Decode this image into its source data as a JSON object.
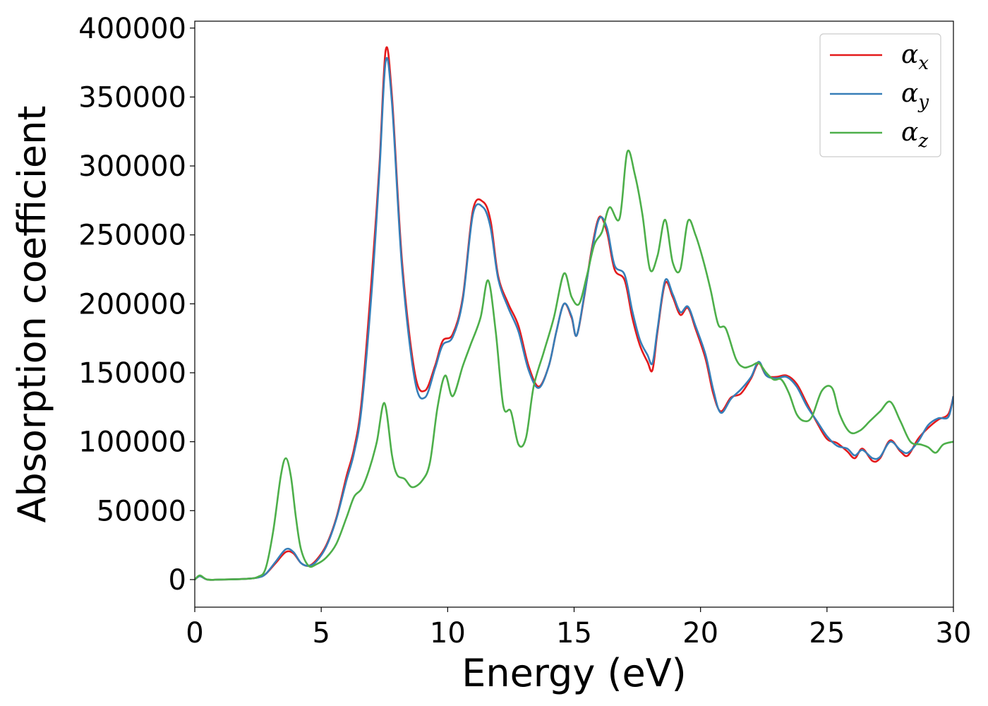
{
  "chart_data": {
    "type": "line",
    "title": "",
    "xlabel": "Energy (eV)",
    "ylabel": "Absorption coefficient",
    "xlim": [
      0,
      30
    ],
    "ylim": [
      -20000,
      405000
    ],
    "xticks": [
      0,
      5,
      10,
      15,
      20,
      25,
      30
    ],
    "xtick_labels": [
      "0",
      "5",
      "10",
      "15",
      "20",
      "25",
      "30"
    ],
    "yticks": [
      0,
      50000,
      100000,
      150000,
      200000,
      250000,
      300000,
      350000,
      400000
    ],
    "ytick_labels": [
      "0",
      "50000",
      "100000",
      "150000",
      "200000",
      "250000",
      "300000",
      "350000",
      "400000"
    ],
    "grid": false,
    "legend_position": "top-right",
    "series": [
      {
        "name": "αx",
        "symbol": "α",
        "subscript": "x",
        "color": "#e41a1c",
        "points": [
          [
            0,
            0
          ],
          [
            0.2,
            2500
          ],
          [
            0.5,
            0
          ],
          [
            1,
            0
          ],
          [
            2,
            500
          ],
          [
            2.5,
            1500
          ],
          [
            2.8,
            4000
          ],
          [
            3.2,
            12000
          ],
          [
            3.6,
            20000
          ],
          [
            3.9,
            19000
          ],
          [
            4.2,
            12000
          ],
          [
            4.5,
            10000
          ],
          [
            4.8,
            14000
          ],
          [
            5.2,
            25000
          ],
          [
            5.6,
            45000
          ],
          [
            6.0,
            75000
          ],
          [
            6.3,
            95000
          ],
          [
            6.6,
            130000
          ],
          [
            7.0,
            220000
          ],
          [
            7.3,
            300000
          ],
          [
            7.55,
            384000
          ],
          [
            7.8,
            350000
          ],
          [
            8.2,
            230000
          ],
          [
            8.7,
            150000
          ],
          [
            9.1,
            137000
          ],
          [
            9.5,
            155000
          ],
          [
            9.8,
            173000
          ],
          [
            10.2,
            178000
          ],
          [
            10.6,
            205000
          ],
          [
            11.0,
            268000
          ],
          [
            11.4,
            274000
          ],
          [
            11.7,
            260000
          ],
          [
            12.0,
            220000
          ],
          [
            12.4,
            200000
          ],
          [
            12.8,
            184000
          ],
          [
            13.2,
            155000
          ],
          [
            13.6,
            140000
          ],
          [
            14.0,
            155000
          ],
          [
            14.3,
            180000
          ],
          [
            14.6,
            200000
          ],
          [
            14.9,
            190000
          ],
          [
            15.1,
            177000
          ],
          [
            15.4,
            205000
          ],
          [
            15.7,
            240000
          ],
          [
            16.0,
            263000
          ],
          [
            16.3,
            252000
          ],
          [
            16.6,
            225000
          ],
          [
            17.0,
            217000
          ],
          [
            17.3,
            190000
          ],
          [
            17.6,
            170000
          ],
          [
            17.9,
            158000
          ],
          [
            18.1,
            152000
          ],
          [
            18.3,
            180000
          ],
          [
            18.6,
            215000
          ],
          [
            18.9,
            205000
          ],
          [
            19.2,
            192000
          ],
          [
            19.5,
            197000
          ],
          [
            19.8,
            182000
          ],
          [
            20.2,
            160000
          ],
          [
            20.5,
            135000
          ],
          [
            20.8,
            122000
          ],
          [
            21.2,
            132000
          ],
          [
            21.6,
            135000
          ],
          [
            22.0,
            146000
          ],
          [
            22.3,
            157000
          ],
          [
            22.6,
            148000
          ],
          [
            23.0,
            147000
          ],
          [
            23.4,
            148000
          ],
          [
            23.8,
            142000
          ],
          [
            24.2,
            128000
          ],
          [
            24.6,
            114000
          ],
          [
            25.0,
            102000
          ],
          [
            25.4,
            99000
          ],
          [
            25.8,
            93000
          ],
          [
            26.1,
            88000
          ],
          [
            26.4,
            95000
          ],
          [
            26.8,
            86000
          ],
          [
            27.1,
            88000
          ],
          [
            27.5,
            101000
          ],
          [
            27.9,
            93000
          ],
          [
            28.2,
            90000
          ],
          [
            28.6,
            102000
          ],
          [
            29.0,
            110000
          ],
          [
            29.4,
            116000
          ],
          [
            29.8,
            120000
          ],
          [
            30,
            133000
          ]
        ]
      },
      {
        "name": "αy",
        "symbol": "α",
        "subscript": "y",
        "color": "#377eb8",
        "points": [
          [
            0,
            0
          ],
          [
            0.2,
            2500
          ],
          [
            0.5,
            0
          ],
          [
            1,
            0
          ],
          [
            2,
            500
          ],
          [
            2.5,
            1500
          ],
          [
            2.8,
            4000
          ],
          [
            3.2,
            13000
          ],
          [
            3.6,
            22000
          ],
          [
            3.9,
            20000
          ],
          [
            4.2,
            12000
          ],
          [
            4.5,
            10000
          ],
          [
            4.8,
            13000
          ],
          [
            5.2,
            24000
          ],
          [
            5.6,
            44000
          ],
          [
            6.0,
            72000
          ],
          [
            6.3,
            92000
          ],
          [
            6.6,
            125000
          ],
          [
            7.0,
            210000
          ],
          [
            7.3,
            295000
          ],
          [
            7.55,
            376000
          ],
          [
            7.8,
            345000
          ],
          [
            8.2,
            225000
          ],
          [
            8.7,
            145000
          ],
          [
            9.1,
            132000
          ],
          [
            9.5,
            153000
          ],
          [
            9.8,
            170000
          ],
          [
            10.2,
            176000
          ],
          [
            10.6,
            203000
          ],
          [
            11.0,
            265000
          ],
          [
            11.4,
            270000
          ],
          [
            11.7,
            255000
          ],
          [
            12.0,
            218000
          ],
          [
            12.4,
            197000
          ],
          [
            12.8,
            180000
          ],
          [
            13.2,
            152000
          ],
          [
            13.6,
            139000
          ],
          [
            14.0,
            155000
          ],
          [
            14.3,
            180000
          ],
          [
            14.6,
            200000
          ],
          [
            14.9,
            191000
          ],
          [
            15.1,
            177000
          ],
          [
            15.4,
            206000
          ],
          [
            15.7,
            238000
          ],
          [
            16.0,
            262000
          ],
          [
            16.3,
            255000
          ],
          [
            16.6,
            228000
          ],
          [
            17.0,
            221000
          ],
          [
            17.3,
            195000
          ],
          [
            17.6,
            174000
          ],
          [
            17.9,
            163000
          ],
          [
            18.1,
            157000
          ],
          [
            18.3,
            182000
          ],
          [
            18.6,
            217000
          ],
          [
            18.9,
            207000
          ],
          [
            19.2,
            194000
          ],
          [
            19.5,
            198000
          ],
          [
            19.8,
            184000
          ],
          [
            20.2,
            163000
          ],
          [
            20.5,
            138000
          ],
          [
            20.8,
            121000
          ],
          [
            21.2,
            131000
          ],
          [
            21.6,
            138000
          ],
          [
            22.0,
            147000
          ],
          [
            22.3,
            158000
          ],
          [
            22.6,
            148000
          ],
          [
            23.0,
            146000
          ],
          [
            23.4,
            147000
          ],
          [
            23.8,
            140000
          ],
          [
            24.2,
            126000
          ],
          [
            24.6,
            115000
          ],
          [
            25.0,
            104000
          ],
          [
            25.4,
            97000
          ],
          [
            25.8,
            95000
          ],
          [
            26.1,
            90000
          ],
          [
            26.4,
            94000
          ],
          [
            26.8,
            88000
          ],
          [
            27.1,
            89000
          ],
          [
            27.5,
            100000
          ],
          [
            27.9,
            94000
          ],
          [
            28.2,
            92000
          ],
          [
            28.6,
            100000
          ],
          [
            29.0,
            112000
          ],
          [
            29.4,
            117000
          ],
          [
            29.8,
            118000
          ],
          [
            30,
            133000
          ]
        ]
      },
      {
        "name": "αz",
        "symbol": "α",
        "subscript": "z",
        "color": "#4daf4a",
        "points": [
          [
            0,
            0
          ],
          [
            0.2,
            3000
          ],
          [
            0.5,
            0
          ],
          [
            1,
            0
          ],
          [
            2,
            500
          ],
          [
            2.5,
            2000
          ],
          [
            2.8,
            8000
          ],
          [
            3.1,
            35000
          ],
          [
            3.4,
            75000
          ],
          [
            3.6,
            88000
          ],
          [
            3.8,
            75000
          ],
          [
            4.0,
            45000
          ],
          [
            4.2,
            22000
          ],
          [
            4.5,
            10000
          ],
          [
            4.8,
            11000
          ],
          [
            5.2,
            16000
          ],
          [
            5.6,
            26000
          ],
          [
            6.0,
            45000
          ],
          [
            6.3,
            60000
          ],
          [
            6.6,
            66000
          ],
          [
            6.9,
            80000
          ],
          [
            7.2,
            100000
          ],
          [
            7.5,
            128000
          ],
          [
            7.8,
            90000
          ],
          [
            8.0,
            76000
          ],
          [
            8.3,
            73000
          ],
          [
            8.6,
            67000
          ],
          [
            9.0,
            72000
          ],
          [
            9.3,
            85000
          ],
          [
            9.6,
            125000
          ],
          [
            9.9,
            148000
          ],
          [
            10.2,
            133000
          ],
          [
            10.6,
            155000
          ],
          [
            10.9,
            170000
          ],
          [
            11.3,
            190000
          ],
          [
            11.6,
            217000
          ],
          [
            11.9,
            180000
          ],
          [
            12.2,
            126000
          ],
          [
            12.5,
            122000
          ],
          [
            12.8,
            98000
          ],
          [
            13.1,
            103000
          ],
          [
            13.4,
            140000
          ],
          [
            13.8,
            165000
          ],
          [
            14.2,
            190000
          ],
          [
            14.6,
            222000
          ],
          [
            14.9,
            205000
          ],
          [
            15.2,
            200000
          ],
          [
            15.5,
            220000
          ],
          [
            15.8,
            243000
          ],
          [
            16.1,
            252000
          ],
          [
            16.4,
            270000
          ],
          [
            16.8,
            262000
          ],
          [
            17.1,
            310000
          ],
          [
            17.4,
            294000
          ],
          [
            17.7,
            265000
          ],
          [
            18.0,
            225000
          ],
          [
            18.3,
            235000
          ],
          [
            18.6,
            261000
          ],
          [
            18.9,
            230000
          ],
          [
            19.2,
            225000
          ],
          [
            19.5,
            260000
          ],
          [
            19.8,
            250000
          ],
          [
            20.1,
            232000
          ],
          [
            20.4,
            210000
          ],
          [
            20.7,
            185000
          ],
          [
            21.0,
            182000
          ],
          [
            21.4,
            160000
          ],
          [
            21.7,
            154000
          ],
          [
            22.0,
            155000
          ],
          [
            22.3,
            157000
          ],
          [
            22.6,
            150000
          ],
          [
            22.9,
            145000
          ],
          [
            23.2,
            145000
          ],
          [
            23.5,
            135000
          ],
          [
            23.8,
            120000
          ],
          [
            24.1,
            115000
          ],
          [
            24.4,
            118000
          ],
          [
            24.8,
            137000
          ],
          [
            25.2,
            139000
          ],
          [
            25.5,
            120000
          ],
          [
            25.9,
            107000
          ],
          [
            26.3,
            108000
          ],
          [
            26.7,
            115000
          ],
          [
            27.1,
            122000
          ],
          [
            27.5,
            129000
          ],
          [
            27.9,
            115000
          ],
          [
            28.3,
            100000
          ],
          [
            28.7,
            98000
          ],
          [
            29.0,
            96000
          ],
          [
            29.3,
            92000
          ],
          [
            29.6,
            98000
          ],
          [
            30,
            100000
          ]
        ]
      }
    ]
  }
}
